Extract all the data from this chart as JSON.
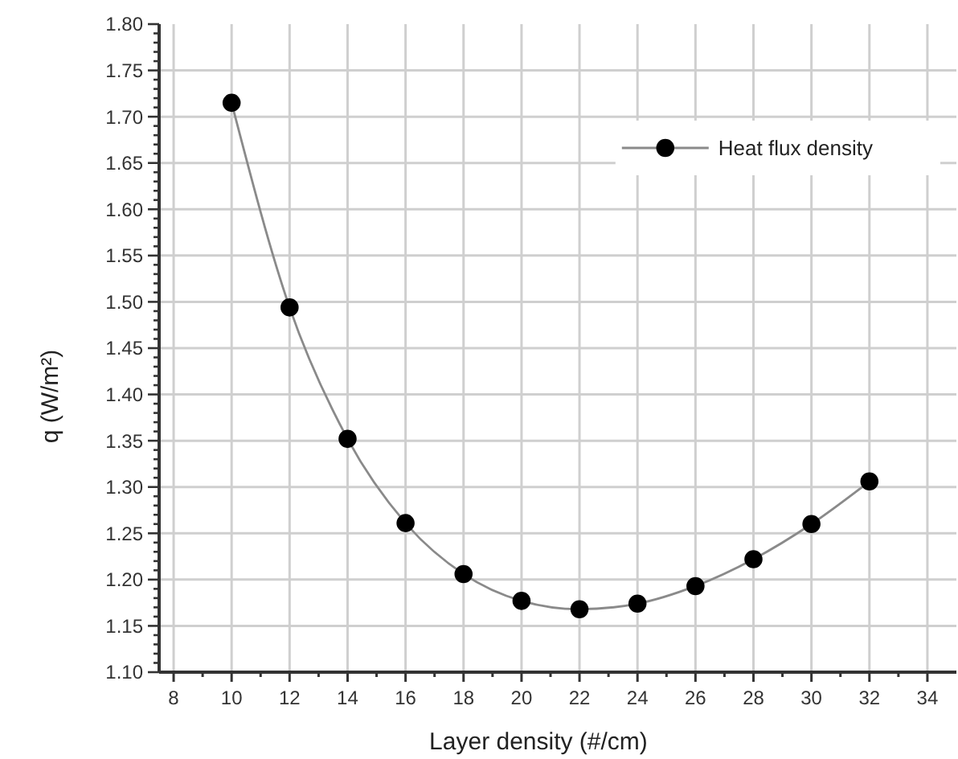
{
  "chart_data": {
    "type": "line",
    "xlabel": "Layer density (#/cm)",
    "ylabel": "q (W/m²)",
    "x": [
      10,
      12,
      14,
      16,
      18,
      20,
      22,
      24,
      26,
      28,
      30,
      32
    ],
    "series": [
      {
        "name": "Heat flux density",
        "color": "#8a8a8a",
        "colors": [
          "#000000",
          "#000000",
          "#000000",
          "#000000",
          "#000000",
          "#000000",
          "#000000",
          "#000000",
          "#000000",
          "#000000",
          "#000000",
          "#000000"
        ],
        "values": [
          1.715,
          1.494,
          1.352,
          1.261,
          1.206,
          1.177,
          1.168,
          1.174,
          1.193,
          1.222,
          1.26,
          1.306
        ]
      }
    ],
    "marker": "circle",
    "line_style": "solid",
    "grid": true,
    "legend": "top right",
    "xlim": [
      7.5,
      35
    ],
    "xticks": [
      8,
      {
        "value": 9,
        "label": null
      },
      10,
      {
        "value": 11,
        "label": null
      },
      12,
      {
        "value": 13,
        "label": null
      },
      14,
      {
        "value": 15,
        "label": null
      },
      16,
      {
        "value": 17,
        "label": null
      },
      18,
      {
        "value": 19,
        "label": null
      },
      20,
      {
        "value": 21,
        "label": null
      },
      22,
      {
        "value": 23,
        "label": null
      },
      24,
      {
        "value": 25,
        "label": null
      },
      26,
      {
        "value": 27,
        "label": null
      },
      28,
      {
        "value": 29,
        "label": null
      },
      30,
      {
        "value": 31,
        "label": null
      },
      32,
      {
        "value": 33,
        "label": null
      },
      34
    ],
    "ylim": [
      1.1,
      1.8
    ],
    "yticks": [
      {
        "value": 1.1,
        "label": "1.10"
      },
      {
        "value": 1.11,
        "label": null
      },
      {
        "value": 1.12,
        "label": null
      },
      {
        "value": 1.13,
        "label": null
      },
      {
        "value": 1.14,
        "label": null
      },
      {
        "value": 1.15,
        "label": "1.15"
      },
      {
        "value": 1.16,
        "label": null
      },
      {
        "value": 1.17,
        "label": null
      },
      {
        "value": 1.18,
        "label": null
      },
      {
        "value": 1.19,
        "label": null
      },
      {
        "value": 1.2,
        "label": "1.20"
      },
      {
        "value": 1.21,
        "label": null
      },
      {
        "value": 1.22,
        "label": null
      },
      {
        "value": 1.23,
        "label": null
      },
      {
        "value": 1.24,
        "label": null
      },
      {
        "value": 1.25,
        "label": "1.25"
      },
      {
        "value": 1.26,
        "label": null
      },
      {
        "value": 1.27,
        "label": null
      },
      {
        "value": 1.28,
        "label": null
      },
      {
        "value": 1.29,
        "label": null
      },
      {
        "value": 1.3,
        "label": "1.30"
      },
      {
        "value": 1.31,
        "label": null
      },
      {
        "value": 1.32,
        "label": null
      },
      {
        "value": 1.33,
        "label": null
      },
      {
        "value": 1.34,
        "label": null
      },
      {
        "value": 1.35,
        "label": "1.35"
      },
      {
        "value": 1.36,
        "label": null
      },
      {
        "value": 1.37,
        "label": null
      },
      {
        "value": 1.38,
        "label": null
      },
      {
        "value": 1.39,
        "label": null
      },
      {
        "value": 1.4,
        "label": "1.40"
      },
      {
        "value": 1.41,
        "label": null
      },
      {
        "value": 1.42,
        "label": null
      },
      {
        "value": 1.43,
        "label": null
      },
      {
        "value": 1.44,
        "label": null
      },
      {
        "value": 1.45,
        "label": "1.45"
      },
      {
        "value": 1.46,
        "label": null
      },
      {
        "value": 1.47,
        "label": null
      },
      {
        "value": 1.48,
        "label": null
      },
      {
        "value": 1.49,
        "label": null
      },
      {
        "value": 1.5,
        "label": "1.50"
      },
      {
        "value": 1.51,
        "label": null
      },
      {
        "value": 1.52,
        "label": null
      },
      {
        "value": 1.53,
        "label": null
      },
      {
        "value": 1.54,
        "label": null
      },
      {
        "value": 1.55,
        "label": "1.55"
      },
      {
        "value": 1.56,
        "label": null
      },
      {
        "value": 1.57,
        "label": null
      },
      {
        "value": 1.58,
        "label": null
      },
      {
        "value": 1.59,
        "label": null
      },
      {
        "value": 1.6,
        "label": "1.60"
      },
      {
        "value": 1.61,
        "label": null
      },
      {
        "value": 1.62,
        "label": null
      },
      {
        "value": 1.63,
        "label": null
      },
      {
        "value": 1.64,
        "label": null
      },
      {
        "value": 1.65,
        "label": "1.65"
      },
      {
        "value": 1.66,
        "label": null
      },
      {
        "value": 1.67,
        "label": null
      },
      {
        "value": 1.68,
        "label": null
      },
      {
        "value": 1.69,
        "label": null
      },
      {
        "value": 1.7,
        "label": "1.70"
      },
      {
        "value": 1.71,
        "label": null
      },
      {
        "value": 1.72,
        "label": null
      },
      {
        "value": 1.73,
        "label": null
      },
      {
        "value": 1.74,
        "label": null
      },
      {
        "value": 1.75,
        "label": "1.75"
      },
      {
        "value": 1.76,
        "label": null
      },
      {
        "value": 1.77,
        "label": null
      },
      {
        "value": 1.78,
        "label": null
      },
      {
        "value": 1.79,
        "label": null
      },
      {
        "value": 1.8,
        "label": "1.80"
      }
    ]
  }
}
